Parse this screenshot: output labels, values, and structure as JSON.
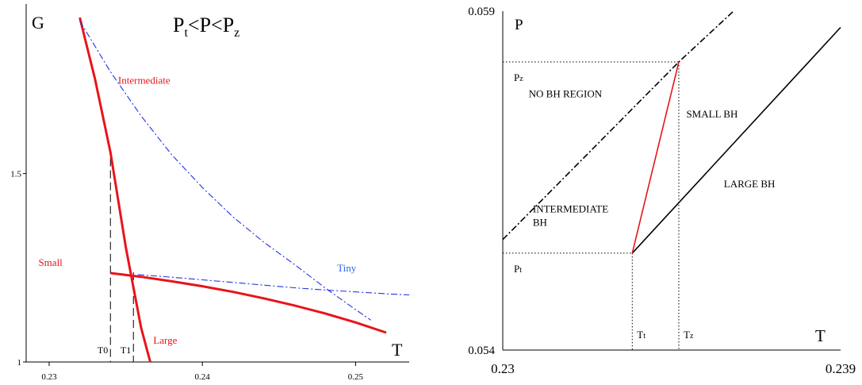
{
  "chart_data": [
    {
      "type": "line",
      "title_parts": [
        "P",
        "t",
        "<P<P",
        "z"
      ],
      "ylabel": "G",
      "xlabel": "T",
      "xlim": [
        0.2285,
        0.2535
      ],
      "ylim": [
        1.0,
        1.95
      ],
      "xticks": [
        {
          "value": 0.23,
          "label": "0.23"
        },
        {
          "value": 0.24,
          "label": "0.24"
        },
        {
          "value": 0.25,
          "label": "0.25"
        }
      ],
      "yticks": [
        {
          "value": 1.0,
          "label": "1"
        },
        {
          "value": 1.5,
          "label": "1.5"
        }
      ],
      "series": [
        {
          "name": "Small",
          "style": "solid",
          "color": "#e8141b",
          "x": [
            0.234,
            0.236,
            0.238,
            0.24,
            0.242,
            0.244,
            0.246,
            0.248,
            0.25,
            0.252
          ],
          "y": [
            1.236,
            1.226,
            1.214,
            1.201,
            1.186,
            1.169,
            1.15,
            1.129,
            1.105,
            1.078
          ]
        },
        {
          "name": "Large",
          "style": "solid",
          "color": "#e8141b",
          "x": [
            0.232,
            0.233,
            0.234,
            0.235,
            0.236,
            0.2366
          ],
          "y": [
            1.914,
            1.75,
            1.556,
            1.305,
            1.091,
            1.0
          ]
        },
        {
          "name": "Intermediate",
          "style": "dashdot",
          "color": "#2233dd",
          "x": [
            0.232,
            0.234,
            0.236,
            0.238,
            0.24,
            0.242,
            0.244,
            0.246,
            0.248,
            0.25,
            0.251
          ],
          "y": [
            1.905,
            1.77,
            1.653,
            1.55,
            1.463,
            1.385,
            1.318,
            1.259,
            1.197,
            1.139,
            1.111
          ]
        },
        {
          "name": "Tiny",
          "style": "dashdot",
          "color": "#2233dd",
          "x": [
            0.2358,
            0.238,
            0.24,
            0.242,
            0.244,
            0.246,
            0.248,
            0.25,
            0.252,
            0.2535
          ],
          "y": [
            1.232,
            1.225,
            1.218,
            1.211,
            1.204,
            1.197,
            1.191,
            1.186,
            1.181,
            1.178
          ]
        }
      ],
      "vlines": [
        {
          "label": "T0",
          "x": 0.234,
          "y_top": 1.54,
          "style": "dashed"
        },
        {
          "label": "T1",
          "x": 0.2355,
          "y_top": 1.238,
          "style": "dashed"
        }
      ],
      "annotations": [
        {
          "text": "Intermediate",
          "x": 0.2345,
          "y": 1.738,
          "color": "#e8141b"
        },
        {
          "text": "Small",
          "x": 0.2293,
          "y": 1.255,
          "color": "#e8141b"
        },
        {
          "text": "Tiny",
          "x": 0.2488,
          "y": 1.24,
          "color": "#2a63e8"
        },
        {
          "text": "Large",
          "x": 0.2368,
          "y": 1.048,
          "color": "#e8141b"
        }
      ]
    },
    {
      "type": "line",
      "ylabel": "P",
      "xlabel": "T",
      "xlim": [
        0.23,
        0.239
      ],
      "ylim": [
        0.054,
        0.059
      ],
      "xticks": [
        {
          "value": 0.23,
          "label": "0.23"
        },
        {
          "value": 0.239,
          "label": "0.239"
        }
      ],
      "yticks": [
        {
          "value": 0.054,
          "label": "0.054"
        },
        {
          "value": 0.059,
          "label": "0.059"
        }
      ],
      "lines": [
        {
          "style": "dashdot",
          "color": "#000000",
          "x": [
            0.23,
            0.23469,
            0.23615
          ],
          "y": [
            0.05563,
            0.05825,
            0.059
          ]
        },
        {
          "style": "solid",
          "color": "#000000",
          "x": [
            0.23345,
            0.239
          ],
          "y": [
            0.05543,
            0.05876
          ]
        },
        {
          "style": "solid",
          "color": "#e8141b",
          "x": [
            0.23345,
            0.23469
          ],
          "y": [
            0.05543,
            0.05825
          ]
        }
      ],
      "guides": [
        {
          "label": "Pz",
          "y": 0.05825
        },
        {
          "label": "Pt",
          "y": 0.05543
        },
        {
          "label": "Tt",
          "x": 0.23345
        },
        {
          "label": "Tz",
          "x": 0.23469
        }
      ],
      "region_labels": [
        {
          "lines": [
            "NO BH REGION"
          ],
          "x": 0.23069,
          "y": 0.05773
        },
        {
          "lines": [
            "SMALL BH"
          ],
          "x": 0.23489,
          "y": 0.05743
        },
        {
          "lines": [
            "LARGE BH"
          ],
          "x": 0.23589,
          "y": 0.0564
        },
        {
          "lines": [
            "INTERMEDIATE",
            "BH"
          ],
          "x": 0.2308,
          "y": 0.05603
        }
      ]
    }
  ]
}
